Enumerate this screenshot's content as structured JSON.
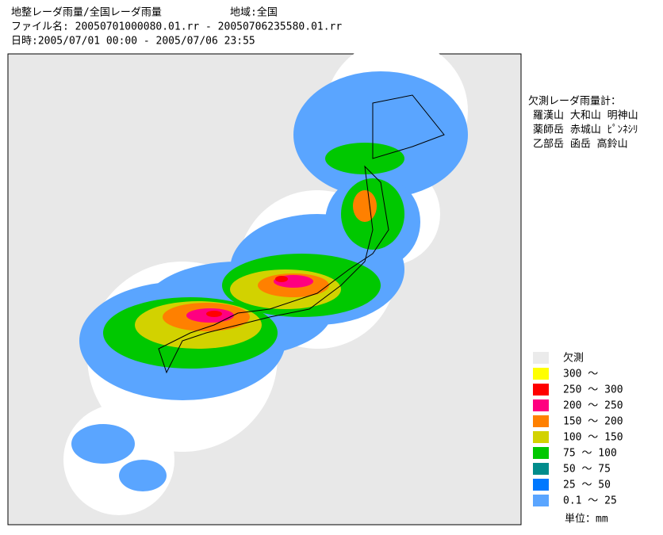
{
  "header": {
    "title": "地整レーダ雨量/全国レーダ雨量",
    "region": "地域:全国",
    "file": "ファイル名: 20050701000080.01.rr - 20050706235580.01.rr",
    "period": "日時:2005/07/01 00:00 - 2005/07/06 23:55"
  },
  "missing_gauges": {
    "title": "欠測レーダ雨量計：",
    "lines": [
      "羅漢山 大和山 明神山",
      "薬師岳 赤城山 ﾋﾟﾝﾈｼﾘ",
      "乙部岳 函岳 高鈴山"
    ]
  },
  "legend": {
    "items": [
      {
        "label": "欠測",
        "color": "#ebebeb"
      },
      {
        "label": "300 ～",
        "color": "#ffff00"
      },
      {
        "label": "250 ～ 300",
        "color": "#ff0000"
      },
      {
        "label": "200 ～ 250",
        "color": "#ff0080"
      },
      {
        "label": "150 ～ 200",
        "color": "#ff8000"
      },
      {
        "label": "100 ～ 150",
        "color": "#d2d200"
      },
      {
        "label": "75 ～ 100",
        "color": "#00c800"
      },
      {
        "label": "50 ～  75",
        "color": "#008c8c"
      },
      {
        "label": "25 ～  50",
        "color": "#0078ff"
      },
      {
        "label": "0.1 ～  25",
        "color": "#5aa5ff"
      }
    ],
    "unit": "単位：mm"
  }
}
